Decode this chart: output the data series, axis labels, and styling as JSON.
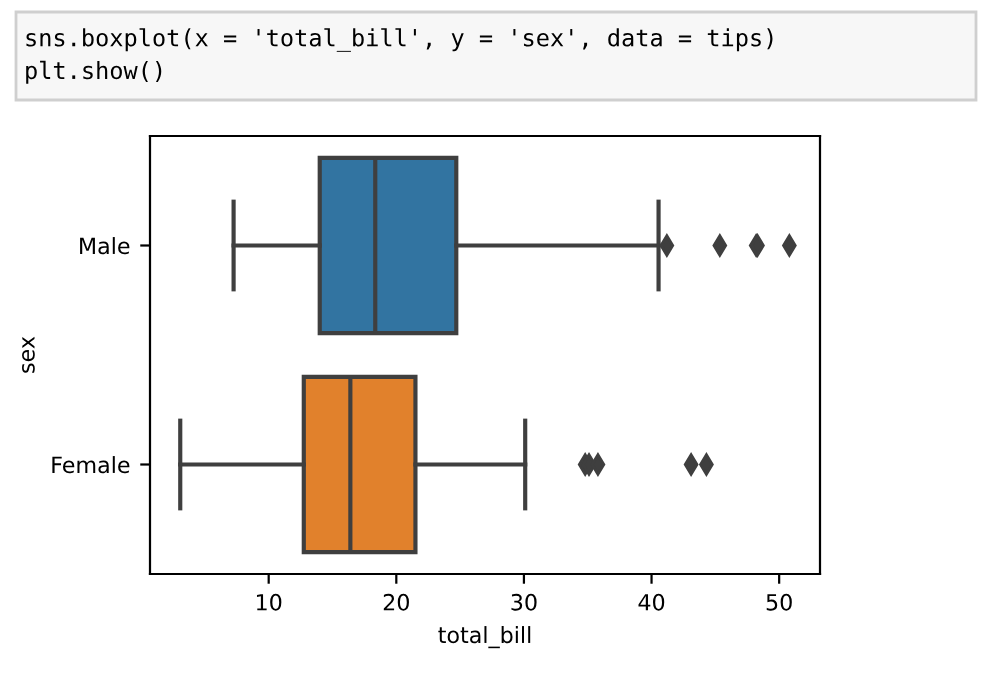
{
  "chart_data": {
    "type": "box",
    "xlabel": "total_bill",
    "ylabel": "sex",
    "orientation": "horizontal",
    "categories": [
      "Male",
      "Female"
    ],
    "colors": [
      "#3274a1",
      "#e1812c"
    ],
    "boxes": [
      {
        "low": 7.25,
        "q1": 14.0,
        "median": 18.35,
        "q3": 24.7,
        "high": 40.55,
        "outliers": [
          41.2,
          45.35,
          48.2,
          48.3,
          50.8
        ]
      },
      {
        "low": 3.07,
        "q1": 12.75,
        "median": 16.4,
        "q3": 21.5,
        "high": 30.1,
        "outliers": [
          34.8,
          35.1,
          35.8,
          43.1,
          44.3
        ]
      }
    ],
    "xlim": [
      0.7,
      53.2
    ],
    "xticks": [
      10,
      20,
      30,
      40,
      50
    ],
    "annotations": [
      "sns.boxplot(x = 'total_bill', y = 'sex', data = tips)\nplt.show()"
    ]
  }
}
